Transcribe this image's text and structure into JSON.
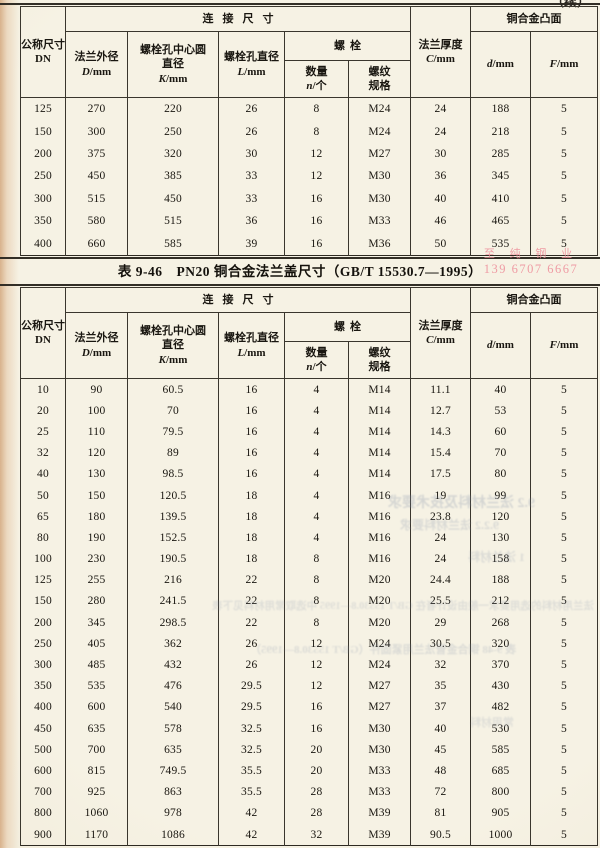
{
  "page": {
    "continued": "（续）",
    "caption": "表 9-46　PN20 铜合金法兰盖尺寸（GB/T 15530.7—1995）",
    "watermark_line1": "至 纯 钢 业",
    "watermark_line2": "139 6707 6667",
    "accent_red": "#ee8d99",
    "paper_color": "#f3efe1",
    "ink_color": "#1c1913"
  },
  "headers": {
    "connection": "连接尺寸",
    "dn_l1": "公称尺寸",
    "dn_l2": "DN",
    "d_l1": "法兰外径",
    "d_var": "D",
    "d_unit": "/mm",
    "k_l1": "螺栓孔中心圆",
    "k_l2": "直径",
    "k_var": "K",
    "k_unit": "/mm",
    "l_l1": "螺栓孔直径",
    "l_var": "L",
    "l_unit": "/mm",
    "bolt": "螺栓",
    "n_l1": "数量",
    "n_var": "n",
    "n_unit": "/个",
    "thread_l1": "螺纹",
    "thread_l2": "规格",
    "c_l1": "法兰厚度",
    "c_var": "C",
    "c_unit": "/mm",
    "face": "铜合金凸面",
    "dd_var": "d",
    "dd_unit": "/mm",
    "f_var": "F",
    "f_unit": "/mm"
  },
  "table1": {
    "rows": [
      [
        "125",
        "270",
        "220",
        "26",
        "8",
        "M24",
        "24",
        "188",
        "5"
      ],
      [
        "150",
        "300",
        "250",
        "26",
        "8",
        "M24",
        "24",
        "218",
        "5"
      ],
      [
        "200",
        "375",
        "320",
        "30",
        "12",
        "M27",
        "30",
        "285",
        "5"
      ],
      [
        "250",
        "450",
        "385",
        "33",
        "12",
        "M30",
        "36",
        "345",
        "5"
      ],
      [
        "300",
        "515",
        "450",
        "33",
        "16",
        "M30",
        "40",
        "410",
        "5"
      ],
      [
        "350",
        "580",
        "515",
        "36",
        "16",
        "M33",
        "46",
        "465",
        "5"
      ],
      [
        "400",
        "660",
        "585",
        "39",
        "16",
        "M36",
        "50",
        "535",
        "5"
      ]
    ]
  },
  "table2": {
    "rows": [
      [
        "10",
        "90",
        "60.5",
        "16",
        "4",
        "M14",
        "11.1",
        "40",
        "5"
      ],
      [
        "20",
        "100",
        "70",
        "16",
        "4",
        "M14",
        "12.7",
        "53",
        "5"
      ],
      [
        "25",
        "110",
        "79.5",
        "16",
        "4",
        "M14",
        "14.3",
        "60",
        "5"
      ],
      [
        "32",
        "120",
        "89",
        "16",
        "4",
        "M14",
        "15.4",
        "70",
        "5"
      ],
      [
        "40",
        "130",
        "98.5",
        "16",
        "4",
        "M14",
        "17.5",
        "80",
        "5"
      ],
      [
        "50",
        "150",
        "120.5",
        "18",
        "4",
        "M16",
        "19",
        "99",
        "5"
      ],
      [
        "65",
        "180",
        "139.5",
        "18",
        "4",
        "M16",
        "23.8",
        "120",
        "5"
      ],
      [
        "80",
        "190",
        "152.5",
        "18",
        "4",
        "M16",
        "24",
        "130",
        "5"
      ],
      [
        "100",
        "230",
        "190.5",
        "18",
        "8",
        "M16",
        "24",
        "158",
        "5"
      ],
      [
        "125",
        "255",
        "216",
        "22",
        "8",
        "M20",
        "24.4",
        "188",
        "5"
      ],
      [
        "150",
        "280",
        "241.5",
        "22",
        "8",
        "M20",
        "25.5",
        "212",
        "5"
      ],
      [
        "200",
        "345",
        "298.5",
        "22",
        "8",
        "M20",
        "29",
        "268",
        "5"
      ],
      [
        "250",
        "405",
        "362",
        "26",
        "12",
        "M24",
        "30.5",
        "320",
        "5"
      ],
      [
        "300",
        "485",
        "432",
        "26",
        "12",
        "M24",
        "32",
        "370",
        "5"
      ],
      [
        "350",
        "535",
        "476",
        "29.5",
        "12",
        "M27",
        "35",
        "430",
        "5"
      ],
      [
        "400",
        "600",
        "540",
        "29.5",
        "16",
        "M27",
        "37",
        "482",
        "5"
      ],
      [
        "450",
        "635",
        "578",
        "32.5",
        "16",
        "M30",
        "40",
        "530",
        "5"
      ],
      [
        "500",
        "700",
        "635",
        "32.5",
        "20",
        "M30",
        "45",
        "585",
        "5"
      ],
      [
        "600",
        "815",
        "749.5",
        "35.5",
        "20",
        "M33",
        "48",
        "685",
        "5"
      ],
      [
        "700",
        "925",
        "863",
        "35.5",
        "28",
        "M33",
        "72",
        "800",
        "5"
      ],
      [
        "800",
        "1060",
        "978",
        "42",
        "28",
        "M39",
        "81",
        "905",
        "5"
      ],
      [
        "900",
        "1170",
        "1086",
        "42",
        "32",
        "M39",
        "90.5",
        "1000",
        "5"
      ]
    ]
  },
  "bleedthrough": {
    "l1": "9.2 法兰材料及技术要求",
    "l2": "9.2.2 法兰材料要求",
    "l3": "1 法兰材料",
    "l4": "法兰用材料的选用要求一般由设计者在 GB/T 15530.8—1995 中选取常用材料见下表",
    "l5": "表 9-48 铜合金管法兰用紧固件（GB/T 15530.8—1995）",
    "l6": "常用材料"
  }
}
